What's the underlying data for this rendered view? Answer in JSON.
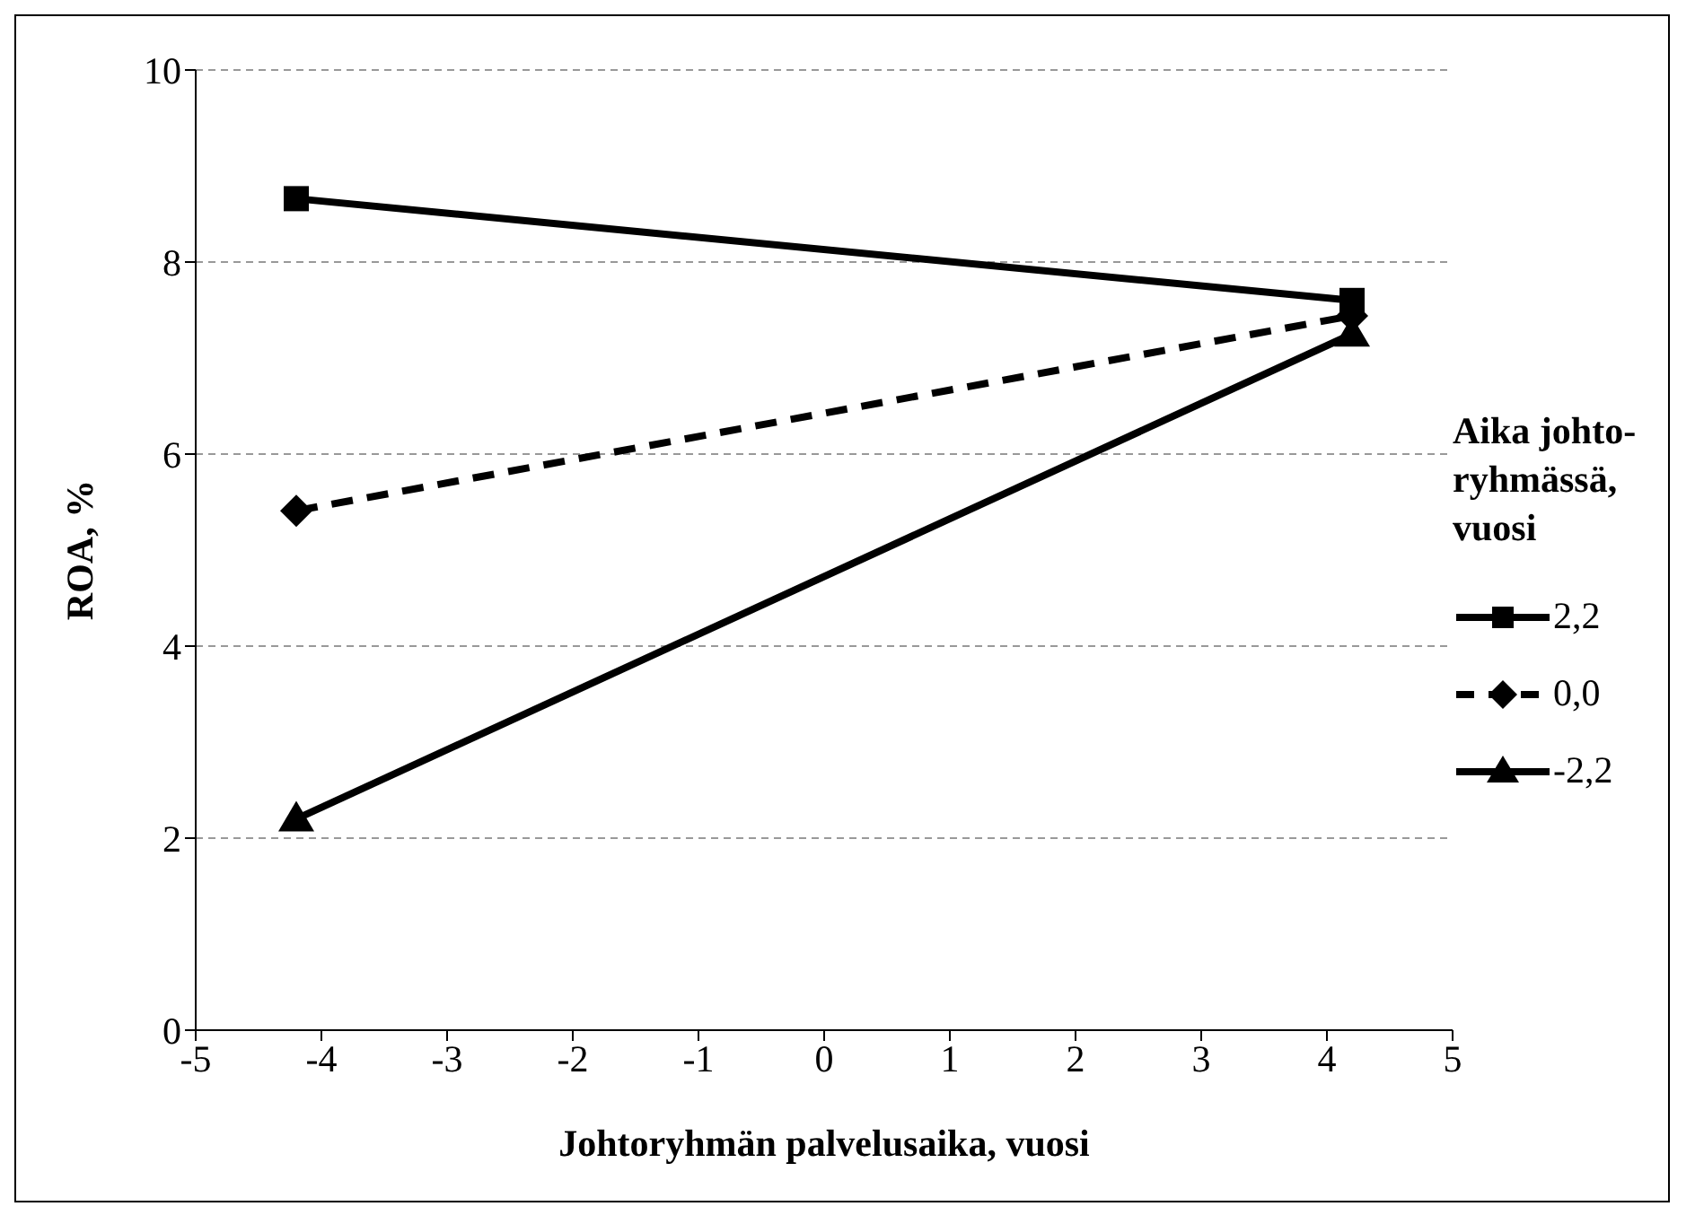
{
  "chart_data": {
    "type": "line",
    "xlabel": "Johtoryhmän palvelusaika, vuosi",
    "ylabel": "ROA, %",
    "legend_title": "Aika johto-ryhmässä, vuosi",
    "x": [
      -4.2,
      4.2
    ],
    "series": [
      {
        "name": "2,2",
        "color": "#000000",
        "values": [
          8.66,
          7.6
        ],
        "marker": "square",
        "line_style": "solid"
      },
      {
        "name": "0,0",
        "color": "#000000",
        "values": [
          5.41,
          7.44
        ],
        "marker": "diamond",
        "line_style": "dashed"
      },
      {
        "name": "-2,2",
        "color": "#000000",
        "values": [
          2.2,
          7.25
        ],
        "marker": "triangle",
        "line_style": "solid"
      }
    ],
    "xlim": [
      -5,
      5
    ],
    "xticks": [
      -5,
      -4,
      -3,
      -2,
      -1,
      0,
      1,
      2,
      3,
      4,
      5
    ],
    "ylim": [
      0,
      10
    ],
    "yticks": [
      0,
      2,
      4,
      6,
      8,
      10
    ],
    "grid": "y",
    "legend": "right"
  }
}
